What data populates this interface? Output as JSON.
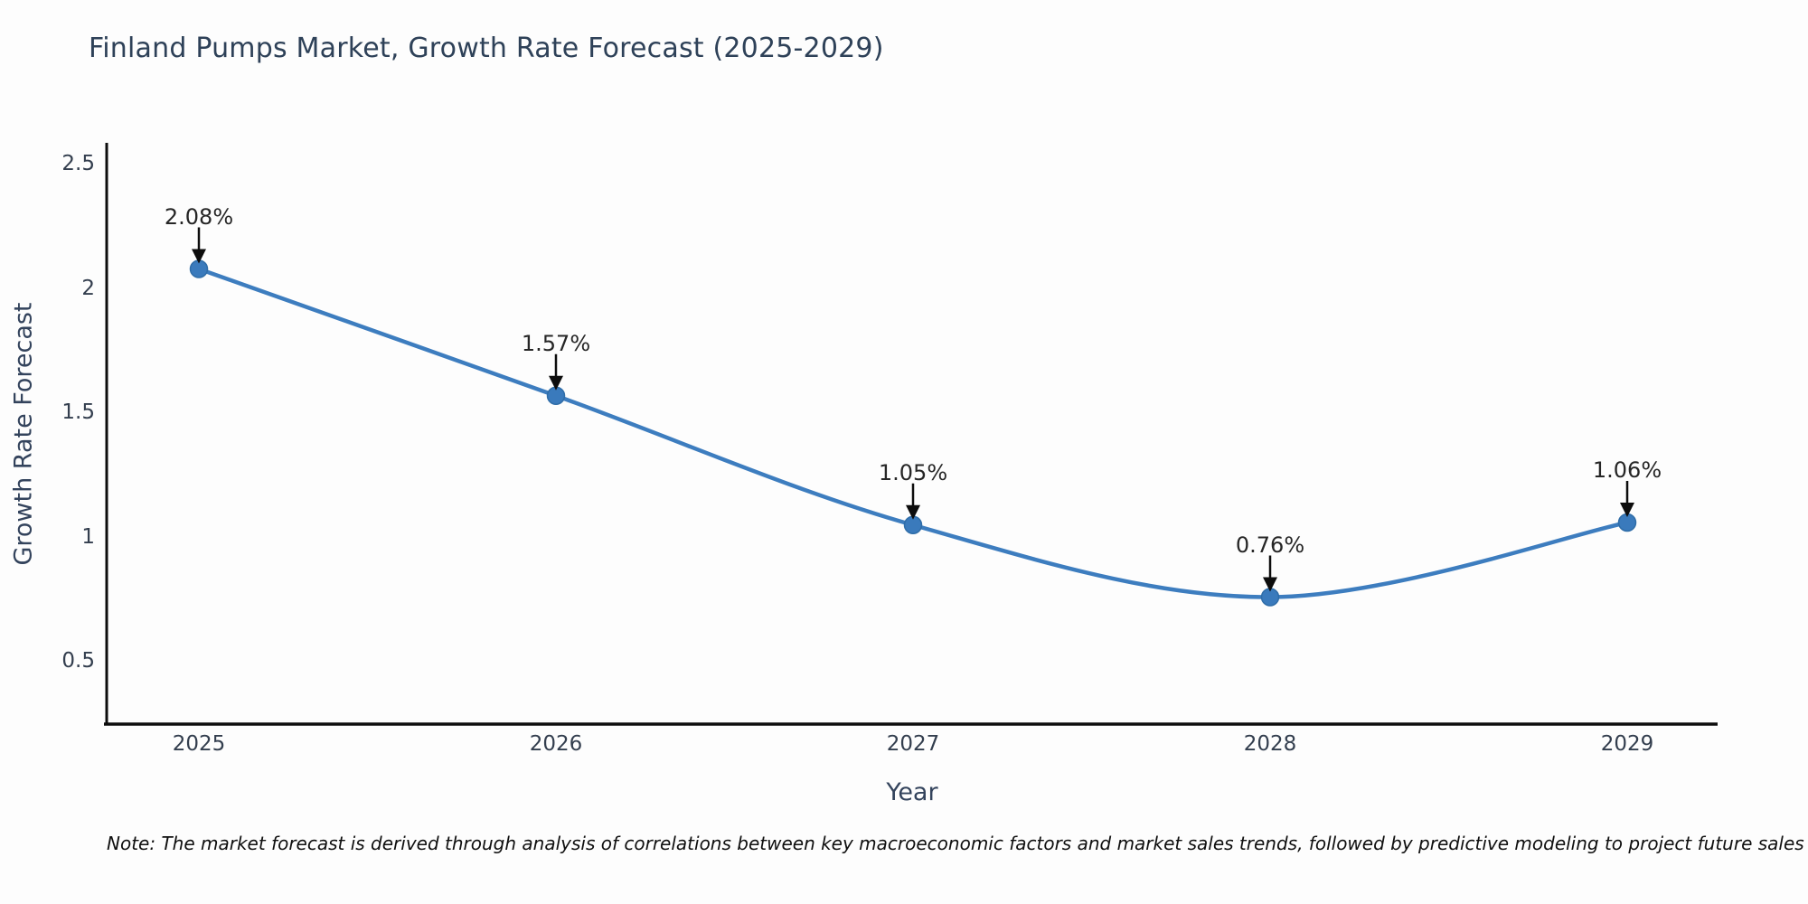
{
  "chart_data": {
    "type": "line",
    "title": "Finland Pumps Market, Growth Rate Forecast (2025-2029)",
    "xlabel": "Year",
    "ylabel": "Growth Rate Forecast",
    "categories": [
      2025,
      2026,
      2027,
      2028,
      2029
    ],
    "x_labels": [
      "2025",
      "2026",
      "2027",
      "2028",
      "2029"
    ],
    "series": [
      {
        "name": "Growth Rate Forecast",
        "values": [
          2.08,
          1.57,
          1.05,
          0.76,
          1.06
        ]
      }
    ],
    "point_labels": [
      "2.08%",
      "1.57%",
      "1.05%",
      "0.76%",
      "1.06%"
    ],
    "ytick_values": [
      2.5,
      2.0,
      1.5,
      1.0,
      0.5
    ],
    "ytick_labels": [
      "2.5",
      "2",
      "1.5",
      "1",
      "0.5"
    ],
    "ylim": [
      0.25,
      2.58
    ],
    "grid": false,
    "legend_position": "none",
    "smooth": true,
    "annotation_arrows": true,
    "colors": {
      "line": "#3d7dbf",
      "marker": "#3a7abc",
      "marker_edge": "#2f6da8",
      "arrow": "#0d0d0d",
      "spine": "#0d0d0d",
      "title_text": "#2e4158",
      "tick_text": "#333e4e",
      "annotation_text": "#262626",
      "background": "#fdfdfd"
    }
  },
  "note": "Note: The market forecast is derived through analysis of correlations between key macroeconomic factors and market sales trends, followed by predictive modeling to project future sales"
}
